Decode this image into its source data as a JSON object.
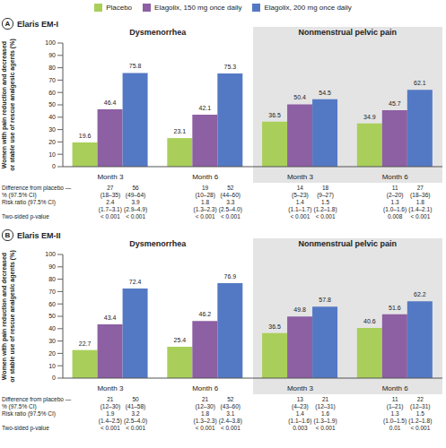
{
  "chart_data": [
    {
      "type": "bar",
      "panel_label": "A",
      "title": "Elaris EM-I",
      "y_label": "Women with pain reduction and decreased or stable use of rescue analgesic agents (%)",
      "group_labels": [
        "Dysmenorrhea",
        "Nonmenstrual pelvic pain"
      ],
      "categories": [
        "Month 3",
        "Month 6",
        "Month 3",
        "Month 6"
      ],
      "series": [
        {
          "name": "Placebo",
          "color": "#a9cf5a",
          "values": [
            19.6,
            23.1,
            36.5,
            34.9
          ]
        },
        {
          "name": "Elagolix, 150 mg once daily",
          "color": "#8d5fa3",
          "values": [
            46.4,
            42.1,
            50.4,
            45.7
          ]
        },
        {
          "name": "Elagolix, 200 mg once daily",
          "color": "#5479c4",
          "values": [
            75.8,
            75.3,
            54.5,
            62.1
          ]
        }
      ],
      "ylim": [
        0,
        100
      ],
      "yticks": [
        0,
        10,
        20,
        30,
        40,
        50,
        60,
        70,
        80,
        90,
        100
      ],
      "grid": false,
      "legend": "top",
      "data_labels": true,
      "table": {
        "row_labels": [
          [
            "Difference from placebo —",
            "% (97.5% CI)"
          ],
          [
            "Risk ratio (97.5% CI)"
          ],
          [
            "Two-sided p-value"
          ]
        ],
        "cells": [
          [
            [
              [
                "27",
                "(18–35)"
              ],
              [
                "2.4",
                "(1.7–3.1)"
              ],
              [
                "< 0.001"
              ]
            ],
            [
              [
                "56",
                "(49–64)"
              ],
              [
                "3.9",
                "(2.9–4.9)"
              ],
              [
                "< 0.001"
              ]
            ]
          ],
          [
            [
              [
                "19",
                "(10–28)"
              ],
              [
                "1.8",
                "(1.3–2.3)"
              ],
              [
                "< 0.001"
              ]
            ],
            [
              [
                "52",
                "(44–60)"
              ],
              [
                "3.3",
                "(2.5–4.0)"
              ],
              [
                "< 0.001"
              ]
            ]
          ],
          [
            [
              [
                "14",
                "(5–23)"
              ],
              [
                "1.4",
                "(1.1–1.7)"
              ],
              [
                "< 0.001"
              ]
            ],
            [
              [
                "18",
                "(9–27)"
              ],
              [
                "1.5",
                "(1.2–1.8)"
              ],
              [
                "< 0.001"
              ]
            ]
          ],
          [
            [
              [
                "11",
                "(2–20)"
              ],
              [
                "1.3",
                "(1.0–1.6)"
              ],
              [
                "0.008"
              ]
            ],
            [
              [
                "27",
                "(18–36)"
              ],
              [
                "1.8",
                "(1.4–2.1)"
              ],
              [
                "< 0.001"
              ]
            ]
          ]
        ]
      }
    },
    {
      "type": "bar",
      "panel_label": "B",
      "title": "Elaris EM-II",
      "y_label": "Women with pain reduction and decreased or stable use of rescue analgesic agents (%)",
      "group_labels": [
        "Dysmenorrhea",
        "Nonmenstrual pelvic pain"
      ],
      "categories": [
        "Month 3",
        "Month 6",
        "Month 3",
        "Month 6"
      ],
      "series": [
        {
          "name": "Placebo",
          "color": "#a9cf5a",
          "values": [
            22.7,
            25.4,
            36.5,
            40.6
          ]
        },
        {
          "name": "Elagolix, 150 mg once daily",
          "color": "#8d5fa3",
          "values": [
            43.4,
            46.2,
            49.8,
            51.6
          ]
        },
        {
          "name": "Elagolix, 200 mg once daily",
          "color": "#5479c4",
          "values": [
            72.4,
            76.9,
            57.8,
            62.2
          ]
        }
      ],
      "ylim": [
        0,
        100
      ],
      "yticks": [
        0,
        10,
        20,
        30,
        40,
        50,
        60,
        70,
        80,
        90,
        100
      ],
      "grid": false,
      "legend": "top",
      "data_labels": true,
      "table": {
        "row_labels": [
          [
            "Difference from placebo —",
            "% (97.5% CI)"
          ],
          [
            "Risk ratio (97.5% CI)"
          ],
          [
            "Two-sided p-value"
          ]
        ],
        "cells": [
          [
            [
              [
                "21",
                "(12–30)"
              ],
              [
                "1.9",
                "(1.4–2.5)"
              ],
              [
                "< 0.001"
              ]
            ],
            [
              [
                "50",
                "(41–58)"
              ],
              [
                "3.2",
                "(2.5–4.0)"
              ],
              [
                "< 0.001"
              ]
            ]
          ],
          [
            [
              [
                "21",
                "(12–30)"
              ],
              [
                "1.8",
                "(1.3–2.3)"
              ],
              [
                "< 0.001"
              ]
            ],
            [
              [
                "52",
                "(43–60)"
              ],
              [
                "3.1",
                "(2.4–3.8)"
              ],
              [
                "< 0.001"
              ]
            ]
          ],
          [
            [
              [
                "13",
                "(4–23)"
              ],
              [
                "1.4",
                "(1.1–1.6)"
              ],
              [
                "0.003"
              ]
            ],
            [
              [
                "21",
                "(12–31)"
              ],
              [
                "1.6",
                "(1.3–1.9)"
              ],
              [
                "< 0.001"
              ]
            ]
          ],
          [
            [
              [
                "11",
                "(1–21)"
              ],
              [
                "1.3",
                "(1.0–1.5)"
              ],
              [
                "0.01"
              ]
            ],
            [
              [
                "22",
                "(12–31)"
              ],
              [
                "1.5",
                "(1.2–1.8)"
              ],
              [
                "< 0.001"
              ]
            ]
          ]
        ]
      }
    }
  ]
}
